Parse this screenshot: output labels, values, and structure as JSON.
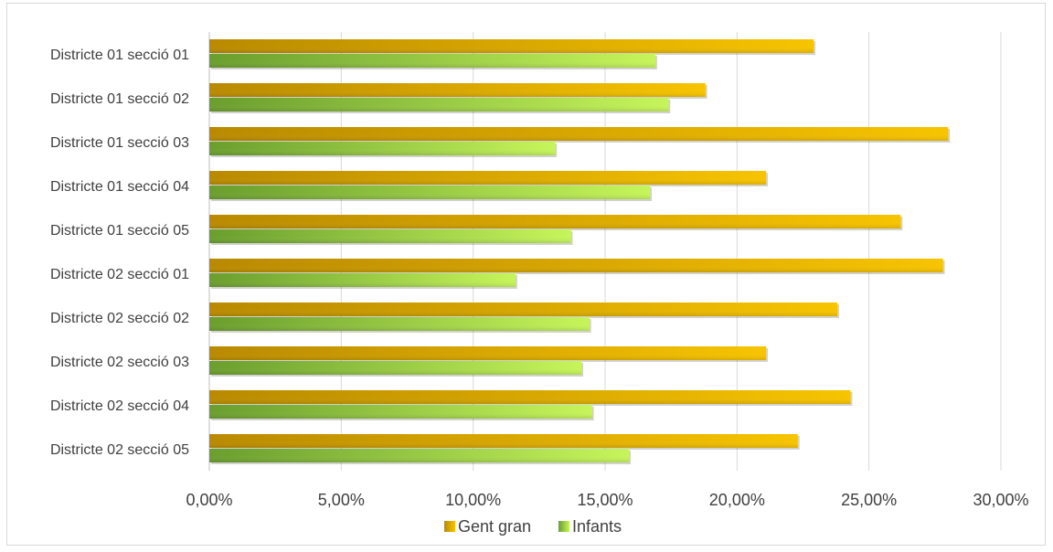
{
  "chart_data": {
    "type": "bar",
    "orientation": "horizontal",
    "categories": [
      "Districte 01 secció 01",
      "Districte 01 secció 02",
      "Districte 01 secció 03",
      "Districte 01 secció 04",
      "Districte 01 secció 05",
      "Districte 02 secció 01",
      "Districte 02 secció 02",
      "Districte 02 secció 03",
      "Districte 02 secció 04",
      "Districte 02 secció 05"
    ],
    "series": [
      {
        "name": "Gent gran",
        "color": "#f0b400",
        "values": [
          22.9,
          18.8,
          28.0,
          21.1,
          26.2,
          27.8,
          23.8,
          21.1,
          24.3,
          22.3
        ]
      },
      {
        "name": "Infants",
        "color": "#b5e84a",
        "values": [
          16.9,
          17.4,
          13.1,
          16.7,
          13.7,
          11.6,
          14.4,
          14.1,
          14.5,
          15.9
        ]
      }
    ],
    "xlim": [
      0,
      30
    ],
    "xticks": [
      "0,00%",
      "5,00%",
      "10,00%",
      "15,00%",
      "20,00%",
      "25,00%",
      "30,00%"
    ],
    "grid": "vertical",
    "legend": "bottom",
    "title": "",
    "xlabel": "",
    "ylabel": ""
  }
}
